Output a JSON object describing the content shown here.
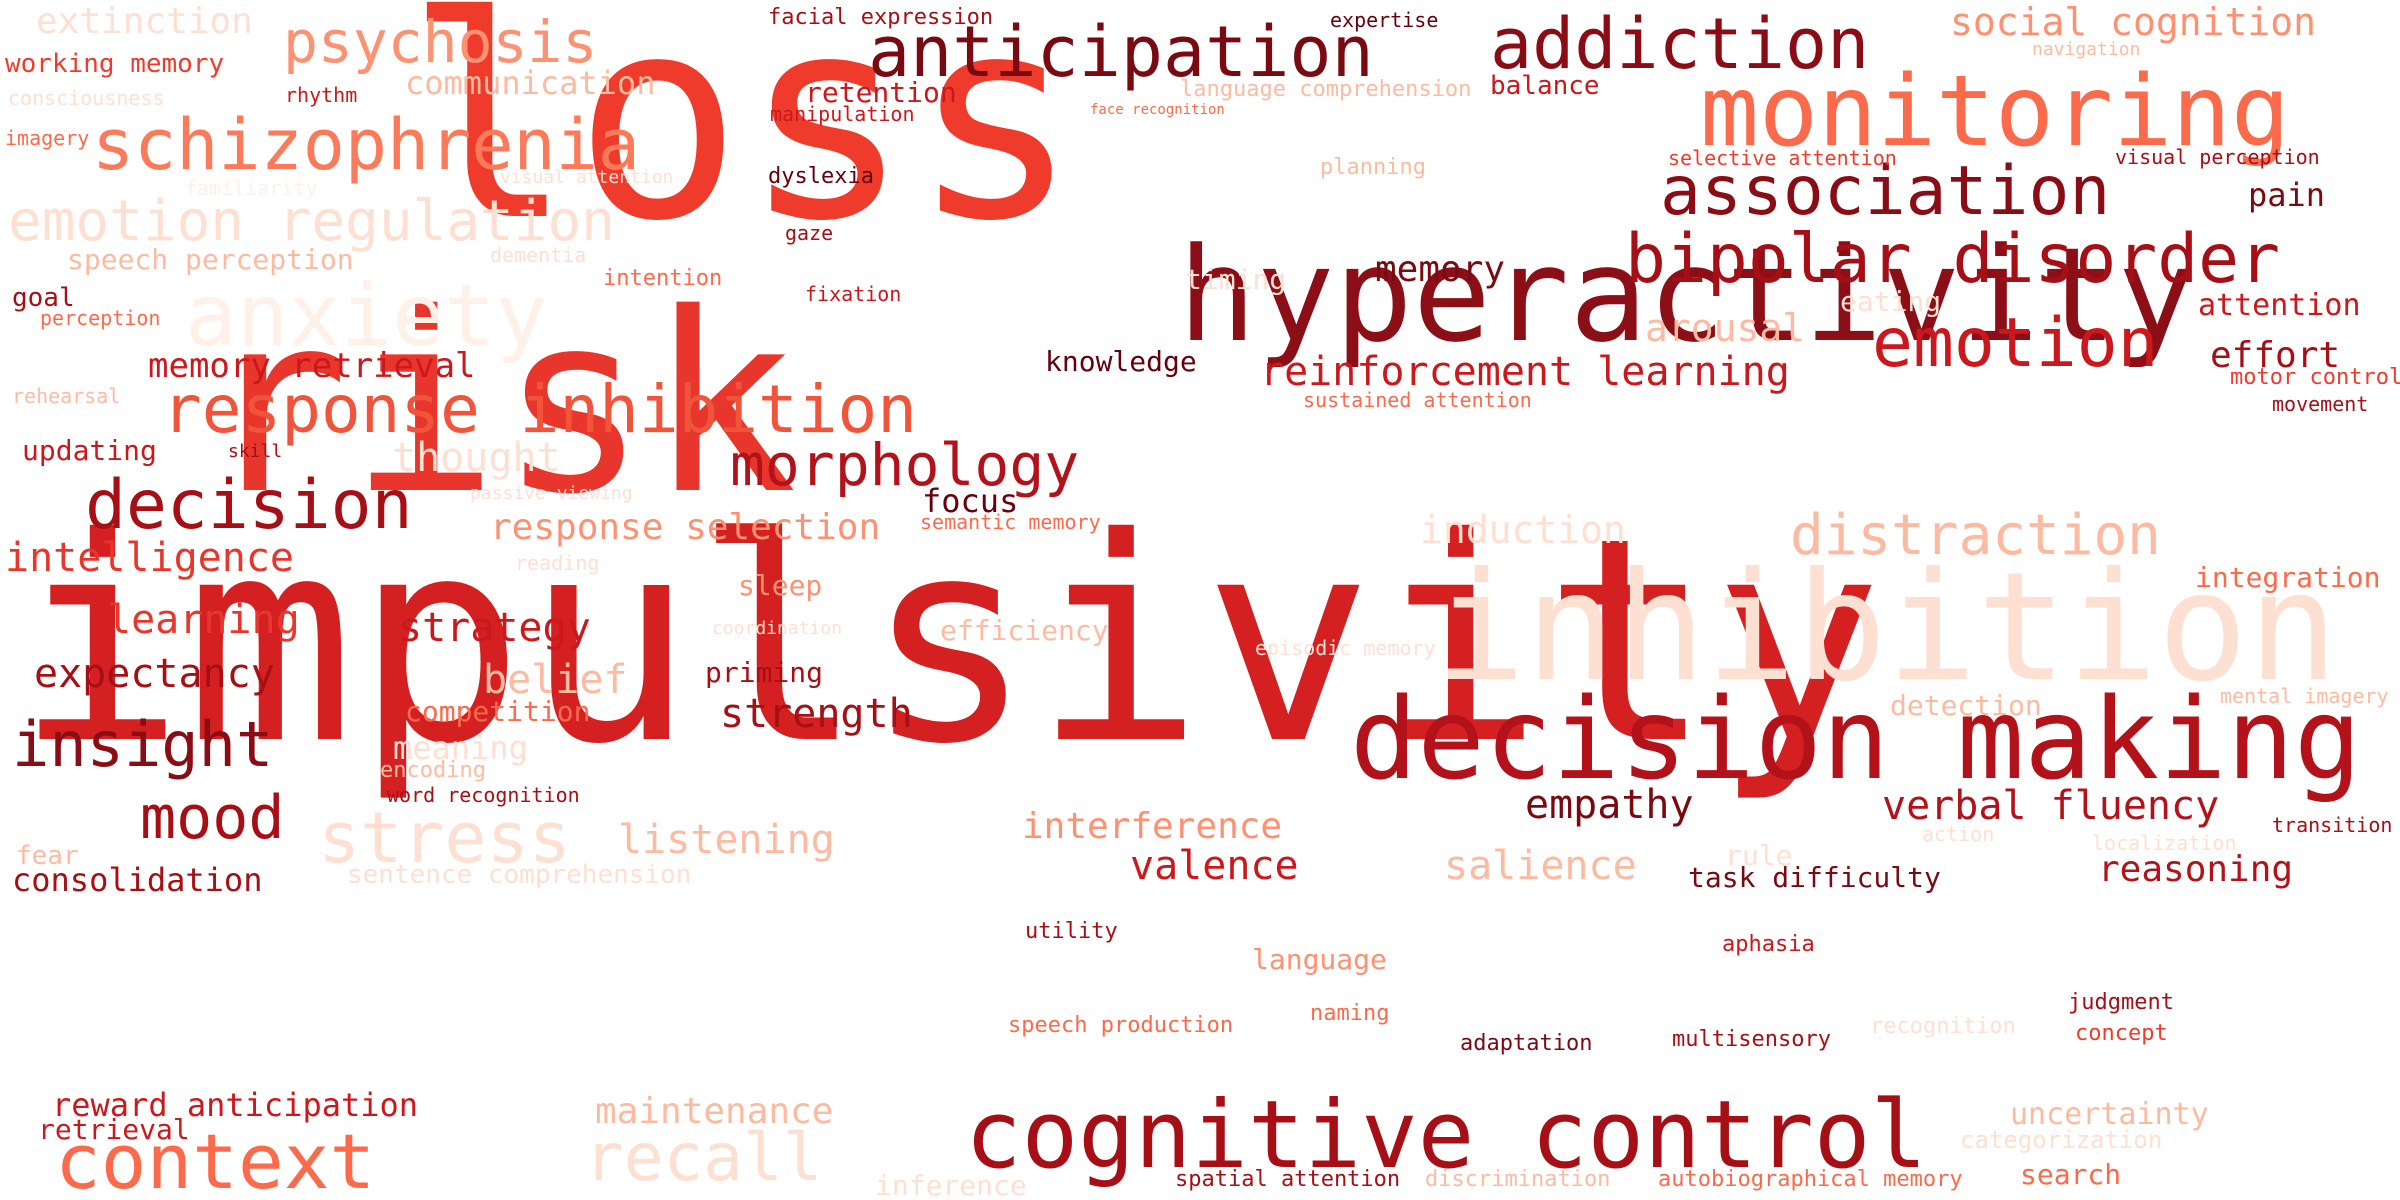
{
  "colors": {
    "background": "#ffffff",
    "palette": [
      "#67000d",
      "#a50f15",
      "#cb181d",
      "#ef3b2c",
      "#fb6a4a",
      "#fc9272",
      "#fcbba1",
      "#fee0d2"
    ]
  },
  "words": [
    {
      "text": "loss",
      "color": "#ef3b2c"
    },
    {
      "text": "impulsivity",
      "color": "#d42020"
    },
    {
      "text": "risk",
      "color": "#e8362c"
    },
    {
      "text": "hyperactivity",
      "color": "#8c0f18"
    },
    {
      "text": "decision making",
      "color": "#b3121a"
    },
    {
      "text": "cognitive control",
      "color": "#a50f15"
    },
    {
      "text": "inhibition",
      "color": "#fee0d2"
    },
    {
      "text": "monitoring",
      "color": "#fb6a4a"
    },
    {
      "text": "anticipation",
      "color": "#7a0a12"
    },
    {
      "text": "addiction",
      "color": "#8a0d16"
    },
    {
      "text": "association",
      "color": "#8a0d16"
    },
    {
      "text": "bipolar disorder",
      "color": "#a50f15"
    },
    {
      "text": "emotion",
      "color": "#cb181d"
    },
    {
      "text": "schizophrenia",
      "color": "#fb7a5a"
    },
    {
      "text": "psychosis",
      "color": "#fc9272"
    },
    {
      "text": "emotion regulation",
      "color": "#fee0d2"
    },
    {
      "text": "anxiety",
      "color": "#fff0e8"
    },
    {
      "text": "response inhibition",
      "color": "#f0543a"
    },
    {
      "text": "decision",
      "color": "#a50f15"
    },
    {
      "text": "morphology",
      "color": "#b3121a"
    },
    {
      "text": "reinforcement learning",
      "color": "#cb181d"
    },
    {
      "text": "distraction",
      "color": "#fcbba1"
    },
    {
      "text": "context",
      "color": "#fb6a4a"
    },
    {
      "text": "stress",
      "color": "#fee0d2"
    },
    {
      "text": "recall",
      "color": "#fee0d2"
    },
    {
      "text": "mood",
      "color": "#a50f15"
    },
    {
      "text": "insight",
      "color": "#8a0d16"
    },
    {
      "text": "expectancy",
      "color": "#a50f15"
    },
    {
      "text": "intelligence",
      "color": "#e8362c"
    },
    {
      "text": "learning",
      "color": "#e8362c"
    },
    {
      "text": "strategy",
      "color": "#cb181d"
    },
    {
      "text": "strength",
      "color": "#a50f15"
    },
    {
      "text": "belief",
      "color": "#fcbba1"
    },
    {
      "text": "verbal fluency",
      "color": "#b3121a"
    },
    {
      "text": "empathy",
      "color": "#7a0a12"
    },
    {
      "text": "reasoning",
      "color": "#b3121a"
    },
    {
      "text": "interference",
      "color": "#fc9272"
    },
    {
      "text": "valence",
      "color": "#cb181d"
    },
    {
      "text": "salience",
      "color": "#fcbba1"
    },
    {
      "text": "listening",
      "color": "#fcbba1"
    },
    {
      "text": "consolidation",
      "color": "#a50f15"
    },
    {
      "text": "reward anticipation",
      "color": "#cb181d"
    },
    {
      "text": "retrieval",
      "color": "#cb181d"
    },
    {
      "text": "maintenance",
      "color": "#fcbba1"
    },
    {
      "text": "uncertainty",
      "color": "#fcbba1"
    },
    {
      "text": "categorization",
      "color": "#fee0d2"
    },
    {
      "text": "search",
      "color": "#fb6a4a"
    },
    {
      "text": "memory retrieval",
      "color": "#cb181d"
    },
    {
      "text": "updating",
      "color": "#cb181d"
    },
    {
      "text": "response selection",
      "color": "#fc9272"
    },
    {
      "text": "induction",
      "color": "#fee0d2"
    },
    {
      "text": "thought",
      "color": "#fee0d2"
    },
    {
      "text": "arousal",
      "color": "#fcbba1"
    },
    {
      "text": "effort",
      "color": "#a50f15"
    },
    {
      "text": "attention",
      "color": "#cb181d"
    },
    {
      "text": "pain",
      "color": "#7a0a12"
    },
    {
      "text": "memory",
      "color": "#7a0a12"
    },
    {
      "text": "knowledge",
      "color": "#67000d"
    },
    {
      "text": "focus",
      "color": "#67000d"
    },
    {
      "text": "sleep",
      "color": "#fc9272"
    },
    {
      "text": "efficiency",
      "color": "#fcbba1"
    },
    {
      "text": "priming",
      "color": "#a50f15"
    },
    {
      "text": "competition",
      "color": "#fb6a4a"
    },
    {
      "text": "meaning",
      "color": "#fee0d2"
    },
    {
      "text": "encoding",
      "color": "#fcbba1"
    },
    {
      "text": "word recognition",
      "color": "#a50f15"
    },
    {
      "text": "sentence comprehension",
      "color": "#fee0d2"
    },
    {
      "text": "fear",
      "color": "#fcbba1"
    },
    {
      "text": "extinction",
      "color": "#fee0d2"
    },
    {
      "text": "working memory",
      "color": "#ef3b2c"
    },
    {
      "text": "consciousness",
      "color": "#fee0d2"
    },
    {
      "text": "imagery",
      "color": "#fb6a4a"
    },
    {
      "text": "rhythm",
      "color": "#cb181d"
    },
    {
      "text": "communication",
      "color": "#fcbba1"
    },
    {
      "text": "familiarity",
      "color": "#fff0e8"
    },
    {
      "text": "visual attention",
      "color": "#fee0d2"
    },
    {
      "text": "speech perception",
      "color": "#fcbba1"
    },
    {
      "text": "dementia",
      "color": "#fee0d2"
    },
    {
      "text": "goal",
      "color": "#a50f15"
    },
    {
      "text": "perception",
      "color": "#fb6a4a"
    },
    {
      "text": "intention",
      "color": "#fb6a4a"
    },
    {
      "text": "rehearsal",
      "color": "#fcbba1"
    },
    {
      "text": "skill",
      "color": "#a50f15"
    },
    {
      "text": "passive viewing",
      "color": "#fee0d2"
    },
    {
      "text": "reading",
      "color": "#fee0d2"
    },
    {
      "text": "coordination",
      "color": "#fee0d2"
    },
    {
      "text": "semantic memory",
      "color": "#fb6a4a"
    },
    {
      "text": "social cognition",
      "color": "#fc9272"
    },
    {
      "text": "navigation",
      "color": "#fcbba1"
    },
    {
      "text": "balance",
      "color": "#cb181d"
    },
    {
      "text": "language comprehension",
      "color": "#fcbba1"
    },
    {
      "text": "face recognition",
      "color": "#fb6a4a"
    },
    {
      "text": "facial expression",
      "color": "#a50f15"
    },
    {
      "text": "expertise",
      "color": "#67000d"
    },
    {
      "text": "retention",
      "color": "#cb181d"
    },
    {
      "text": "manipulation",
      "color": "#cb181d"
    },
    {
      "text": "dyslexia",
      "color": "#67000d"
    },
    {
      "text": "gaze",
      "color": "#a50f15"
    },
    {
      "text": "fixation",
      "color": "#cb181d"
    },
    {
      "text": "planning",
      "color": "#fcbba1"
    },
    {
      "text": "selective attention",
      "color": "#ef3b2c"
    },
    {
      "text": "visual perception",
      "color": "#a50f15"
    },
    {
      "text": "timing",
      "color": "#fee0d2"
    },
    {
      "text": "eating",
      "color": "#fee0d2"
    },
    {
      "text": "sustained attention",
      "color": "#fb6a4a"
    },
    {
      "text": "motor control",
      "color": "#ef3b2c"
    },
    {
      "text": "movement",
      "color": "#a50f15"
    },
    {
      "text": "integration",
      "color": "#fb6a4a"
    },
    {
      "text": "episodic memory",
      "color": "#fee0d2"
    },
    {
      "text": "detection",
      "color": "#fcbba1"
    },
    {
      "text": "mental imagery",
      "color": "#fcbba1"
    },
    {
      "text": "action",
      "color": "#fee0d2"
    },
    {
      "text": "rule",
      "color": "#fee0d2"
    },
    {
      "text": "localization",
      "color": "#fee0d2"
    },
    {
      "text": "transition",
      "color": "#a50f15"
    },
    {
      "text": "task difficulty",
      "color": "#7a0a12"
    },
    {
      "text": "aphasia",
      "color": "#cb181d"
    },
    {
      "text": "utility",
      "color": "#a50f15"
    },
    {
      "text": "language",
      "color": "#fc9272"
    },
    {
      "text": "naming",
      "color": "#fb6a4a"
    },
    {
      "text": "speech production",
      "color": "#fb6a4a"
    },
    {
      "text": "adaptation",
      "color": "#7a0a12"
    },
    {
      "text": "multisensory",
      "color": "#a50f15"
    },
    {
      "text": "recognition",
      "color": "#fee0d2"
    },
    {
      "text": "judgment",
      "color": "#a50f15"
    },
    {
      "text": "concept",
      "color": "#ef3b2c"
    },
    {
      "text": "spatial attention",
      "color": "#a50f15"
    },
    {
      "text": "discrimination",
      "color": "#fcbba1"
    },
    {
      "text": "autobiographical memory",
      "color": "#fb6a4a"
    },
    {
      "text": "inference",
      "color": "#fee0d2"
    }
  ]
}
